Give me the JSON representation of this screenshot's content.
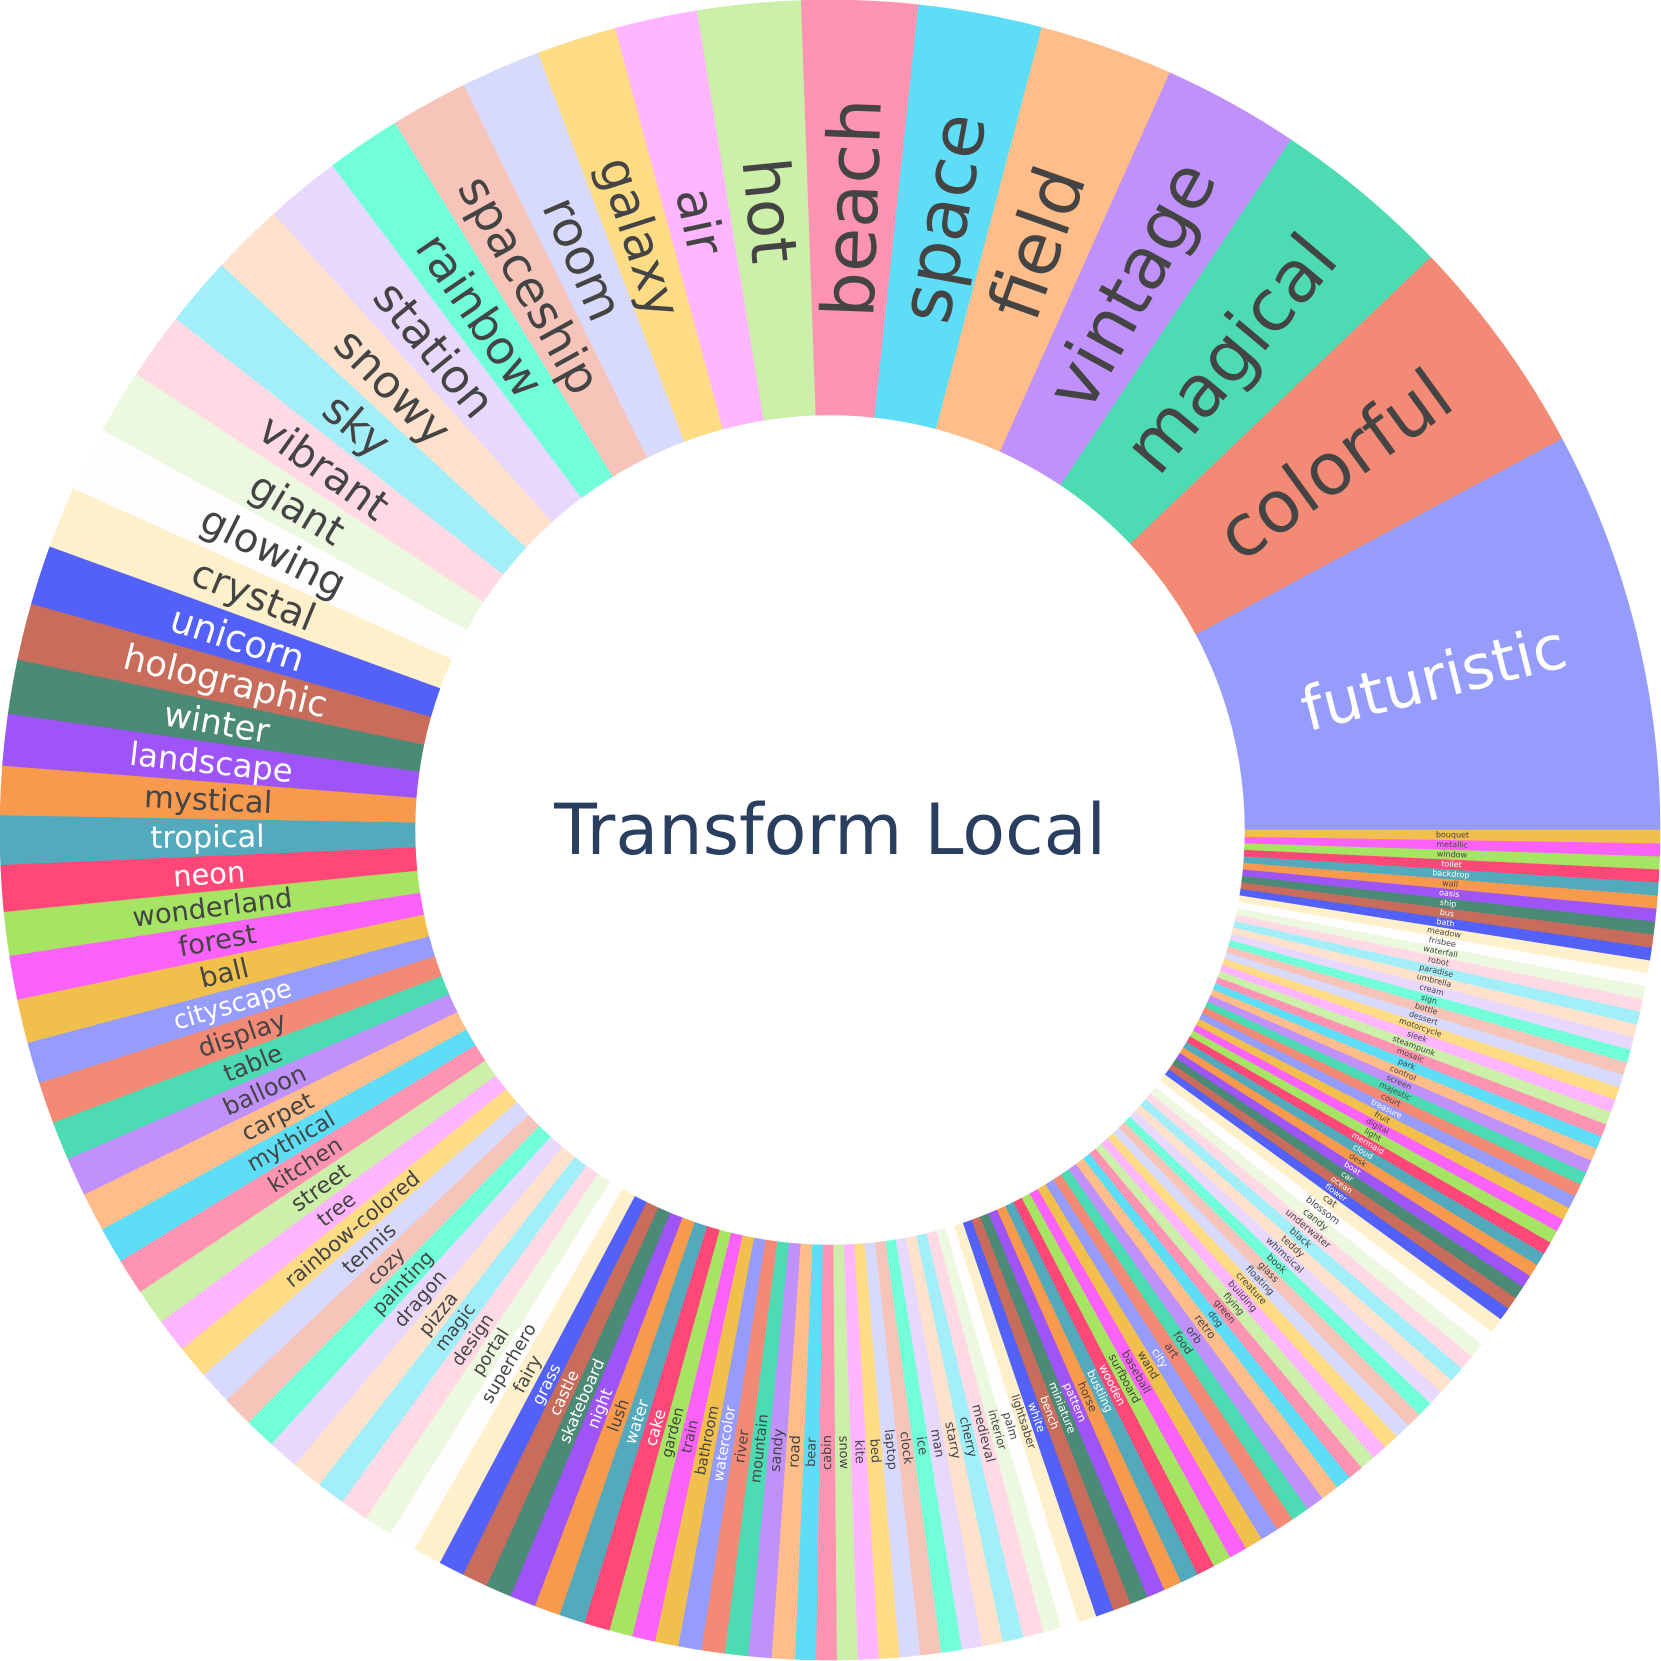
{
  "chart_data": {
    "type": "sunburst",
    "title": "Transform Local",
    "start_angle_deg": 0,
    "direction": "counterclockwise",
    "palette": [
      "#636efa",
      "#EF553B",
      "#00cc96",
      "#ab63fa",
      "#FFA15A",
      "#19d3f3",
      "#FF6692",
      "#B6E880",
      "#FF97FF",
      "#FECB52"
    ],
    "segments": [
      {
        "label": "futuristic",
        "value": 156,
        "color": "#959cfb",
        "text_color": "#ffffff"
      },
      {
        "label": "colorful",
        "value": 86,
        "color": "#f38a75",
        "text_color": "#444444"
      },
      {
        "label": "magical",
        "value": 70,
        "color": "#4ddbb4",
        "text_color": "#444444"
      },
      {
        "label": "vintage",
        "value": 53,
        "color": "#c191fb",
        "text_color": "#444444"
      },
      {
        "label": "field",
        "value": 52,
        "color": "#ffbd8a",
        "text_color": "#444444"
      },
      {
        "label": "space",
        "value": 48,
        "color": "#5ddef6",
        "text_color": "#444444"
      },
      {
        "label": "beach",
        "value": 45,
        "color": "#ff93b2",
        "text_color": "#444444"
      },
      {
        "label": "hot",
        "value": 40,
        "color": "#ccefa9",
        "text_color": "#444444"
      },
      {
        "label": "air",
        "value": 32,
        "color": "#ffb5ff",
        "text_color": "#444444"
      },
      {
        "label": "galaxy",
        "value": 31,
        "color": "#fedb85",
        "text_color": "#444444"
      },
      {
        "label": "room",
        "value": 31,
        "color": "#d8dafd",
        "text_color": "#444444"
      },
      {
        "label": "spaceship",
        "value": 30,
        "color": "#f7c4b9",
        "text_color": "#444444"
      },
      {
        "label": "rainbow",
        "value": 29,
        "color": "#70ffd8",
        "text_color": "#444444"
      },
      {
        "label": "station",
        "value": 29,
        "color": "#e9d8fe",
        "text_color": "#444444"
      },
      {
        "label": "snowy",
        "value": 28,
        "color": "#ffe1cc",
        "text_color": "#444444"
      },
      {
        "label": "sky",
        "value": 27,
        "color": "#a2eef9",
        "text_color": "#444444"
      },
      {
        "label": "vibrant",
        "value": 26,
        "color": "#ffdae4",
        "text_color": "#444444"
      },
      {
        "label": "giant",
        "value": 25,
        "color": "#ecf8e0",
        "text_color": "#444444"
      },
      {
        "label": "glowing",
        "value": 25,
        "color": "#fffdfe",
        "text_color": "#444444"
      },
      {
        "label": "crystal",
        "value": 24,
        "color": "#fff0cc",
        "text_color": "#444444"
      },
      {
        "label": "unicorn",
        "value": 23,
        "color": "#5361f9",
        "text_color": "#ffffff"
      },
      {
        "label": "holographic",
        "value": 22,
        "color": "#c86c5c",
        "text_color": "#ffffff"
      },
      {
        "label": "winter",
        "value": 21,
        "color": "#4b8a76",
        "text_color": "#ffffff"
      },
      {
        "label": "landscape",
        "value": 20,
        "color": "#9f54f7",
        "text_color": "#ffffff"
      },
      {
        "label": "mystical",
        "value": 19,
        "color": "#f89a4e",
        "text_color": "#444444"
      },
      {
        "label": "tropical",
        "value": 19,
        "color": "#52aabc",
        "text_color": "#ffffff"
      },
      {
        "label": "neon",
        "value": 18,
        "color": "#ff4877",
        "text_color": "#ffffff"
      },
      {
        "label": "wonderland",
        "value": 17,
        "color": "#a6e463",
        "text_color": "#444444"
      },
      {
        "label": "forest",
        "value": 17,
        "color": "#fb62fb",
        "text_color": "#444444"
      },
      {
        "label": "ball",
        "value": 17,
        "color": "#f1c04c",
        "text_color": "#444444"
      },
      {
        "label": "cityscape",
        "value": 16,
        "color": "#959cfb",
        "text_color": "#ffffff"
      },
      {
        "label": "display",
        "value": 16,
        "color": "#f38a75",
        "text_color": "#444444"
      },
      {
        "label": "table",
        "value": 15,
        "color": "#4ddbb4",
        "text_color": "#444444"
      },
      {
        "label": "balloon",
        "value": 15,
        "color": "#c191fb",
        "text_color": "#444444"
      },
      {
        "label": "carpet",
        "value": 15,
        "color": "#ffbd8a",
        "text_color": "#444444"
      },
      {
        "label": "mythical",
        "value": 14,
        "color": "#5ddef6",
        "text_color": "#444444"
      },
      {
        "label": "kitchen",
        "value": 14,
        "color": "#ff93b2",
        "text_color": "#444444"
      },
      {
        "label": "street",
        "value": 14,
        "color": "#ccefa9",
        "text_color": "#444444"
      },
      {
        "label": "tree",
        "value": 13,
        "color": "#ffb5ff",
        "text_color": "#444444"
      },
      {
        "label": "rainbow-colored",
        "value": 13,
        "color": "#fedb85",
        "text_color": "#444444"
      },
      {
        "label": "tennis",
        "value": 13,
        "color": "#d8dafd",
        "text_color": "#444444"
      },
      {
        "label": "cozy",
        "value": 12,
        "color": "#f7c4b9",
        "text_color": "#444444"
      },
      {
        "label": "painting",
        "value": 12,
        "color": "#70ffd8",
        "text_color": "#444444"
      },
      {
        "label": "dragon",
        "value": 12,
        "color": "#e9d8fe",
        "text_color": "#444444"
      },
      {
        "label": "pizza",
        "value": 12,
        "color": "#ffe1cc",
        "text_color": "#444444"
      },
      {
        "label": "magic",
        "value": 11,
        "color": "#a2eef9",
        "text_color": "#444444"
      },
      {
        "label": "design",
        "value": 11,
        "color": "#ffdae4",
        "text_color": "#444444"
      },
      {
        "label": "portal",
        "value": 11,
        "color": "#ecf8e0",
        "text_color": "#444444"
      },
      {
        "label": "superhero",
        "value": 11,
        "color": "#fffdfe",
        "text_color": "#444444"
      },
      {
        "label": "fairy",
        "value": 11,
        "color": "#fff0cc",
        "text_color": "#444444"
      },
      {
        "label": "grass",
        "value": 10,
        "color": "#5361f9",
        "text_color": "#ffffff"
      },
      {
        "label": "castle",
        "value": 10,
        "color": "#c86c5c",
        "text_color": "#ffffff"
      },
      {
        "label": "skateboard",
        "value": 10,
        "color": "#4b8a76",
        "text_color": "#ffffff"
      },
      {
        "label": "night",
        "value": 10,
        "color": "#9f54f7",
        "text_color": "#ffffff"
      },
      {
        "label": "lush",
        "value": 10,
        "color": "#f89a4e",
        "text_color": "#444444"
      },
      {
        "label": "water",
        "value": 10,
        "color": "#52aabc",
        "text_color": "#ffffff"
      },
      {
        "label": "cake",
        "value": 10,
        "color": "#ff4877",
        "text_color": "#ffffff"
      },
      {
        "label": "garden",
        "value": 9,
        "color": "#a6e463",
        "text_color": "#444444"
      },
      {
        "label": "train",
        "value": 9,
        "color": "#fb62fb",
        "text_color": "#444444"
      },
      {
        "label": "bathroom",
        "value": 9,
        "color": "#f1c04c",
        "text_color": "#444444"
      },
      {
        "label": "watercolor",
        "value": 9,
        "color": "#959cfb",
        "text_color": "#ffffff"
      },
      {
        "label": "river",
        "value": 9,
        "color": "#f38a75",
        "text_color": "#444444"
      },
      {
        "label": "mountain",
        "value": 9,
        "color": "#4ddbb4",
        "text_color": "#444444"
      },
      {
        "label": "sandy",
        "value": 9,
        "color": "#c191fb",
        "text_color": "#444444"
      },
      {
        "label": "road",
        "value": 9,
        "color": "#ffbd8a",
        "text_color": "#444444"
      },
      {
        "label": "bear",
        "value": 8,
        "color": "#5ddef6",
        "text_color": "#444444"
      },
      {
        "label": "cabin",
        "value": 8,
        "color": "#ff93b2",
        "text_color": "#444444"
      },
      {
        "label": "snow",
        "value": 8,
        "color": "#ccefa9",
        "text_color": "#444444"
      },
      {
        "label": "kite",
        "value": 8,
        "color": "#ffb5ff",
        "text_color": "#444444"
      },
      {
        "label": "bed",
        "value": 8,
        "color": "#fedb85",
        "text_color": "#444444"
      },
      {
        "label": "laptop",
        "value": 8,
        "color": "#d8dafd",
        "text_color": "#444444"
      },
      {
        "label": "clock",
        "value": 8,
        "color": "#f7c4b9",
        "text_color": "#444444"
      },
      {
        "label": "ice",
        "value": 8,
        "color": "#70ffd8",
        "text_color": "#444444"
      },
      {
        "label": "man",
        "value": 8,
        "color": "#e9d8fe",
        "text_color": "#444444"
      },
      {
        "label": "starry",
        "value": 8,
        "color": "#ffe1cc",
        "text_color": "#444444"
      },
      {
        "label": "cherry",
        "value": 8,
        "color": "#a2eef9",
        "text_color": "#444444"
      },
      {
        "label": "medieval",
        "value": 8,
        "color": "#ffdae4",
        "text_color": "#444444"
      },
      {
        "label": "interior",
        "value": 7,
        "color": "#ecf8e0",
        "text_color": "#444444"
      },
      {
        "label": "palm",
        "value": 7,
        "color": "#fffdfe",
        "text_color": "#444444"
      },
      {
        "label": "lightsaber",
        "value": 7,
        "color": "#fff0cc",
        "text_color": "#444444"
      },
      {
        "label": "white",
        "value": 7,
        "color": "#5361f9",
        "text_color": "#ffffff"
      },
      {
        "label": "bench",
        "value": 7,
        "color": "#c86c5c",
        "text_color": "#ffffff"
      },
      {
        "label": "miniature",
        "value": 7,
        "color": "#4b8a76",
        "text_color": "#ffffff"
      },
      {
        "label": "pattern",
        "value": 7,
        "color": "#9f54f7",
        "text_color": "#ffffff"
      },
      {
        "label": "horse",
        "value": 7,
        "color": "#f89a4e",
        "text_color": "#444444"
      },
      {
        "label": "bustling",
        "value": 7,
        "color": "#52aabc",
        "text_color": "#ffffff"
      },
      {
        "label": "wooden",
        "value": 7,
        "color": "#ff4877",
        "text_color": "#ffffff"
      },
      {
        "label": "surfboard",
        "value": 7,
        "color": "#a6e463",
        "text_color": "#444444"
      },
      {
        "label": "baseball",
        "value": 7,
        "color": "#fb62fb",
        "text_color": "#444444"
      },
      {
        "label": "wand",
        "value": 7,
        "color": "#f1c04c",
        "text_color": "#444444"
      },
      {
        "label": "city",
        "value": 7,
        "color": "#959cfb",
        "text_color": "#ffffff"
      },
      {
        "label": "art",
        "value": 7,
        "color": "#f38a75",
        "text_color": "#444444"
      },
      {
        "label": "food",
        "value": 7,
        "color": "#4ddbb4",
        "text_color": "#444444"
      },
      {
        "label": "orb",
        "value": 7,
        "color": "#c191fb",
        "text_color": "#444444"
      },
      {
        "label": "retro",
        "value": 7,
        "color": "#ffbd8a",
        "text_color": "#444444"
      },
      {
        "label": "dog",
        "value": 6,
        "color": "#5ddef6",
        "text_color": "#444444"
      },
      {
        "label": "green",
        "value": 6,
        "color": "#ff93b2",
        "text_color": "#444444"
      },
      {
        "label": "flying",
        "value": 6,
        "color": "#ccefa9",
        "text_color": "#444444"
      },
      {
        "label": "building",
        "value": 6,
        "color": "#ffb5ff",
        "text_color": "#444444"
      },
      {
        "label": "creature",
        "value": 6,
        "color": "#fedb85",
        "text_color": "#444444"
      },
      {
        "label": "floating",
        "value": 6,
        "color": "#d8dafd",
        "text_color": "#444444"
      },
      {
        "label": "glass",
        "value": 6,
        "color": "#f7c4b9",
        "text_color": "#444444"
      },
      {
        "label": "book",
        "value": 6,
        "color": "#70ffd8",
        "text_color": "#444444"
      },
      {
        "label": "whimsical",
        "value": 6,
        "color": "#e9d8fe",
        "text_color": "#444444"
      },
      {
        "label": "teddy",
        "value": 6,
        "color": "#ffe1cc",
        "text_color": "#444444"
      },
      {
        "label": "black",
        "value": 6,
        "color": "#a2eef9",
        "text_color": "#444444"
      },
      {
        "label": "underwater",
        "value": 6,
        "color": "#ffdae4",
        "text_color": "#444444"
      },
      {
        "label": "candy",
        "value": 6,
        "color": "#ecf8e0",
        "text_color": "#444444"
      },
      {
        "label": "blossom",
        "value": 6,
        "color": "#fffdfe",
        "text_color": "#444444"
      },
      {
        "label": "cat",
        "value": 6,
        "color": "#fff0cc",
        "text_color": "#444444"
      },
      {
        "label": "flower",
        "value": 5,
        "color": "#5361f9",
        "text_color": "#ffffff"
      },
      {
        "label": "ocean",
        "value": 5,
        "color": "#c86c5c",
        "text_color": "#ffffff"
      },
      {
        "label": "car",
        "value": 5,
        "color": "#4b8a76",
        "text_color": "#ffffff"
      },
      {
        "label": "boat",
        "value": 5,
        "color": "#9f54f7",
        "text_color": "#ffffff"
      },
      {
        "label": "desk",
        "value": 5,
        "color": "#f89a4e",
        "text_color": "#444444"
      },
      {
        "label": "cloud",
        "value": 5,
        "color": "#52aabc",
        "text_color": "#ffffff"
      },
      {
        "label": "mermaid",
        "value": 5,
        "color": "#ff4877",
        "text_color": "#ffffff"
      },
      {
        "label": "light",
        "value": 5,
        "color": "#a6e463",
        "text_color": "#444444"
      },
      {
        "label": "digital",
        "value": 5,
        "color": "#fb62fb",
        "text_color": "#444444"
      },
      {
        "label": "fruit",
        "value": 5,
        "color": "#f1c04c",
        "text_color": "#444444"
      },
      {
        "label": "treasure",
        "value": 5,
        "color": "#959cfb",
        "text_color": "#ffffff"
      },
      {
        "label": "court",
        "value": 5,
        "color": "#f38a75",
        "text_color": "#444444"
      },
      {
        "label": "majestic",
        "value": 5,
        "color": "#4ddbb4",
        "text_color": "#444444"
      },
      {
        "label": "screen",
        "value": 5,
        "color": "#c191fb",
        "text_color": "#444444"
      },
      {
        "label": "control",
        "value": 5,
        "color": "#ffbd8a",
        "text_color": "#444444"
      },
      {
        "label": "park",
        "value": 5,
        "color": "#5ddef6",
        "text_color": "#444444"
      },
      {
        "label": "mosaic",
        "value": 5,
        "color": "#ff93b2",
        "text_color": "#444444"
      },
      {
        "label": "steampunk",
        "value": 5,
        "color": "#ccefa9",
        "text_color": "#444444"
      },
      {
        "label": "sleek",
        "value": 5,
        "color": "#ffb5ff",
        "text_color": "#444444"
      },
      {
        "label": "motorcycle",
        "value": 5,
        "color": "#fedb85",
        "text_color": "#444444"
      },
      {
        "label": "dessert",
        "value": 5,
        "color": "#d8dafd",
        "text_color": "#444444"
      },
      {
        "label": "bottle",
        "value": 5,
        "color": "#f7c4b9",
        "text_color": "#444444"
      },
      {
        "label": "sign",
        "value": 5,
        "color": "#70ffd8",
        "text_color": "#444444"
      },
      {
        "label": "cream",
        "value": 5,
        "color": "#e9d8fe",
        "text_color": "#444444"
      },
      {
        "label": "umbrella",
        "value": 5,
        "color": "#ffe1cc",
        "text_color": "#444444"
      },
      {
        "label": "paradise",
        "value": 5,
        "color": "#a2eef9",
        "text_color": "#444444"
      },
      {
        "label": "robot",
        "value": 5,
        "color": "#ffdae4",
        "text_color": "#444444"
      },
      {
        "label": "waterfall",
        "value": 5,
        "color": "#ecf8e0",
        "text_color": "#444444"
      },
      {
        "label": "frisbee",
        "value": 5,
        "color": "#fffdfe",
        "text_color": "#444444"
      },
      {
        "label": "meadow",
        "value": 5,
        "color": "#fff0cc",
        "text_color": "#444444"
      },
      {
        "label": "bath",
        "value": 5,
        "color": "#5361f9",
        "text_color": "#ffffff"
      },
      {
        "label": "bus",
        "value": 5,
        "color": "#c86c5c",
        "text_color": "#ffffff"
      },
      {
        "label": "ship",
        "value": 5,
        "color": "#4b8a76",
        "text_color": "#ffffff"
      },
      {
        "label": "oasis",
        "value": 5,
        "color": "#9f54f7",
        "text_color": "#ffffff"
      },
      {
        "label": "wall",
        "value": 5,
        "color": "#f89a4e",
        "text_color": "#444444"
      },
      {
        "label": "backdrop",
        "value": 5,
        "color": "#52aabc",
        "text_color": "#ffffff"
      },
      {
        "label": "toilet",
        "value": 5,
        "color": "#ff4877",
        "text_color": "#ffffff"
      },
      {
        "label": "window",
        "value": 5,
        "color": "#a6e463",
        "text_color": "#444444"
      },
      {
        "label": "metallic",
        "value": 5,
        "color": "#fb62fb",
        "text_color": "#444444"
      },
      {
        "label": "bouquet",
        "value": 5,
        "color": "#f1c04c",
        "text_color": "#444444"
      }
    ]
  }
}
